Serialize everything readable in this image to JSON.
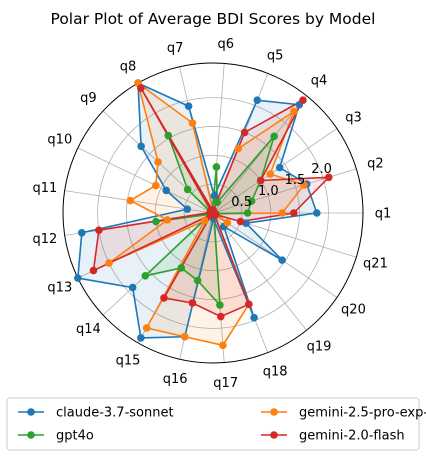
{
  "chart_data": {
    "type": "radar",
    "title": "Polar Plot of Average BDI Scores by Model",
    "categories": [
      "q1",
      "q2",
      "q3",
      "q4",
      "q5",
      "q6",
      "q7",
      "q8",
      "q9",
      "q10",
      "q11",
      "q12",
      "q13",
      "q14",
      "q15",
      "q16",
      "q17",
      "q18",
      "q19",
      "q20",
      "q21"
    ],
    "radial_ticks": [
      "0.5",
      "1.0",
      "1.5",
      "2.0"
    ],
    "radial_tick_values": [
      0.5,
      1.0,
      1.5,
      2.0
    ],
    "rlim": [
      0,
      2.6
    ],
    "grid": true,
    "legend_position": "bottom",
    "series": [
      {
        "name": "claude-3.7-sonnet",
        "color": "#1f77b4",
        "fill": true,
        "values": [
          1.8,
          1.7,
          1.4,
          2.4,
          2.1,
          0.3,
          1.9,
          2.6,
          1.7,
          0.9,
          0.45,
          2.3,
          2.6,
          1.9,
          2.5,
          2.2,
          0.1,
          1.95,
          0.3,
          1.45,
          0.6
        ]
      },
      {
        "name": "gemini-2.5-pro-exp-03-25",
        "color": "#ff7f0e",
        "fill": true,
        "values": [
          1.2,
          1.65,
          1.2,
          2.25,
          1.2,
          0.05,
          1.6,
          2.6,
          1.3,
          1.1,
          1.45,
          0.8,
          2.0,
          0.2,
          2.3,
          2.2,
          2.3,
          1.7,
          0.05,
          0.3,
          0.05
        ]
      },
      {
        "name": "gpt4o",
        "color": "#2ca02c",
        "fill": true,
        "values": [
          0.6,
          0.7,
          1.0,
          1.7,
          0.2,
          0.8,
          0.05,
          1.55,
          0.6,
          0.05,
          0.05,
          1.0,
          0.05,
          1.6,
          1.1,
          1.2,
          1.6,
          0.05,
          0.05,
          0.05,
          0.05
        ]
      },
      {
        "name": "gemini-2.0-flash",
        "color": "#d62728",
        "fill": true,
        "values": [
          1.4,
          2.1,
          1.0,
          2.5,
          1.5,
          0.05,
          0.05,
          2.5,
          0.05,
          0.05,
          0.05,
          2.0,
          2.3,
          0.05,
          1.7,
          1.6,
          1.8,
          1.7,
          0.05,
          0.05,
          0.5
        ]
      }
    ]
  }
}
